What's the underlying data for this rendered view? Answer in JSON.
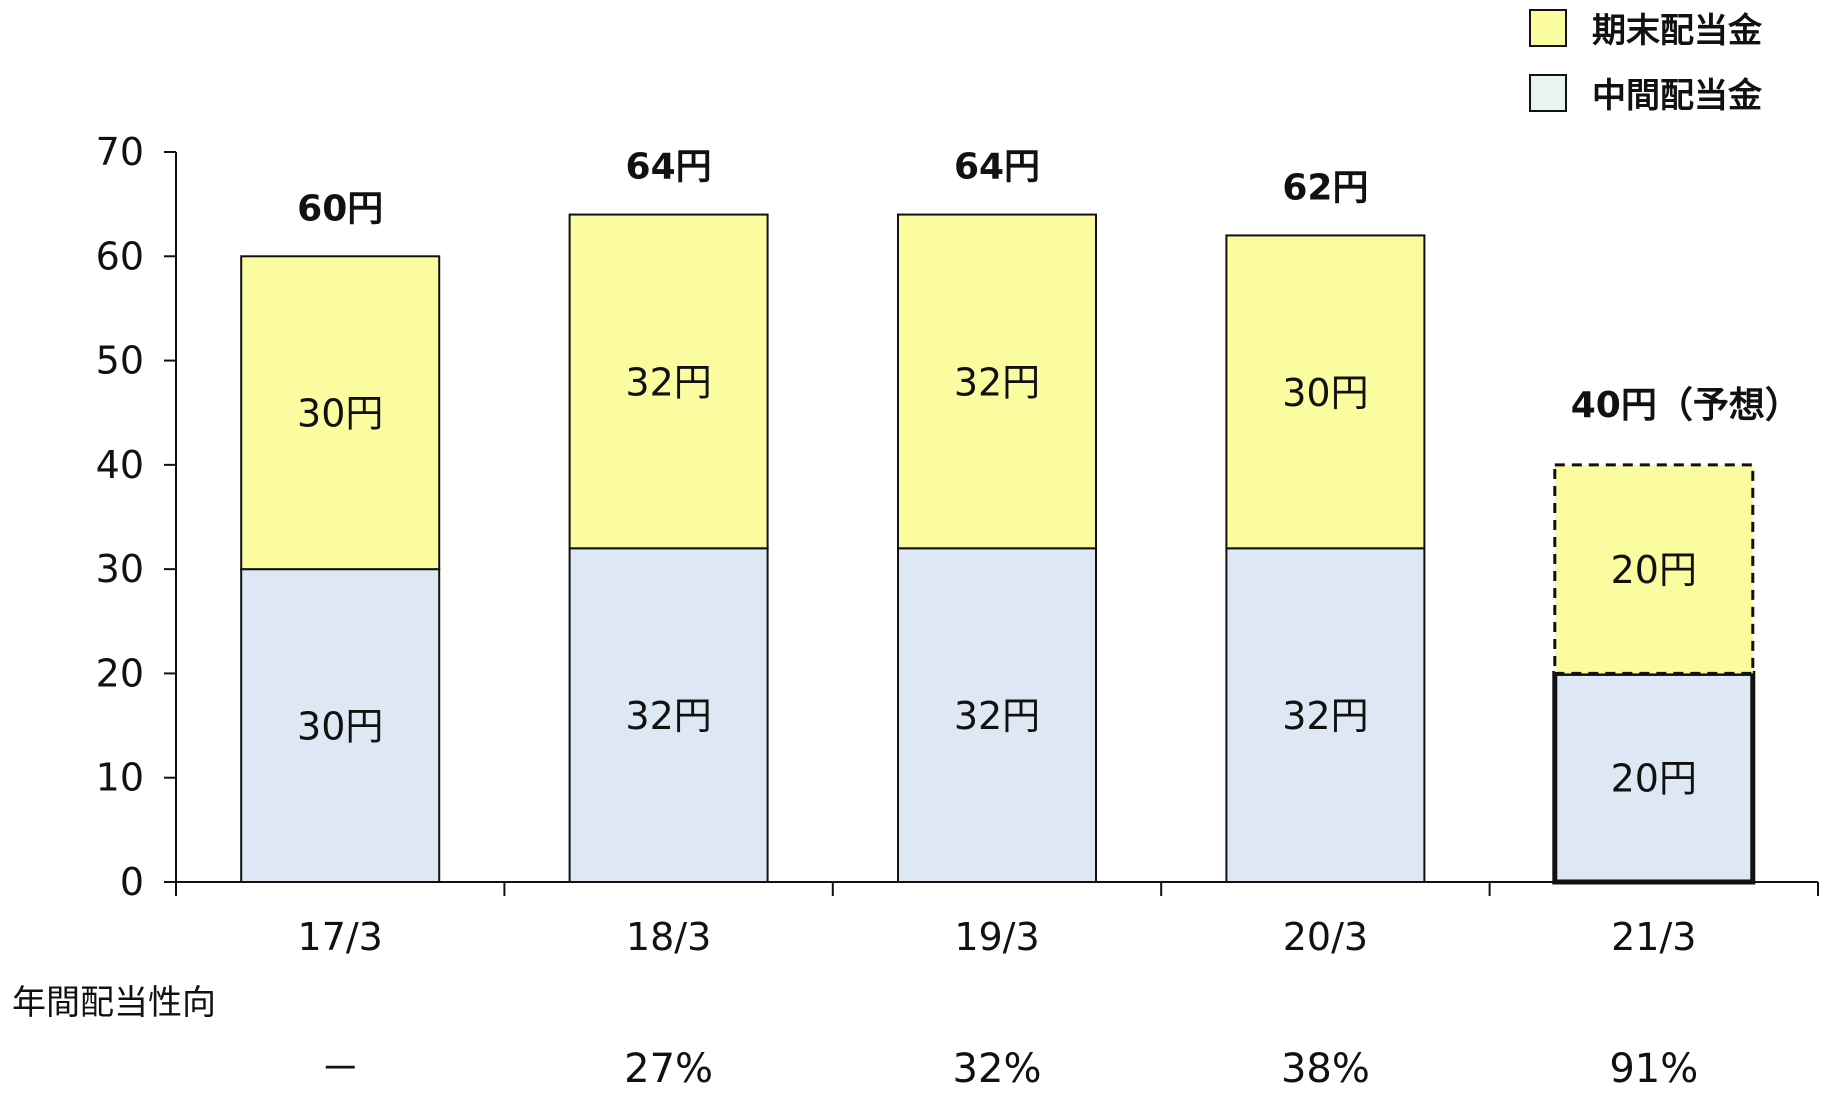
{
  "chart_data": {
    "type": "bar",
    "stacked": true,
    "categories": [
      "17/3",
      "18/3",
      "19/3",
      "20/3",
      "21/3"
    ],
    "series": [
      {
        "name": "中間配当金",
        "values": [
          30,
          32,
          32,
          32,
          20
        ],
        "labels": [
          "30円",
          "32円",
          "32円",
          "32円",
          "20円"
        ],
        "color": "#dde8f4"
      },
      {
        "name": "期末配当金",
        "values": [
          30,
          32,
          32,
          30,
          20
        ],
        "labels": [
          "30円",
          "32円",
          "32円",
          "30円",
          "20円"
        ],
        "color": "#fbfba0"
      }
    ],
    "totals": [
      60,
      64,
      64,
      62,
      40
    ],
    "total_labels": [
      "60円",
      "64円",
      "64円",
      "62円",
      "40円（予想）"
    ],
    "forecast_category": "21/3",
    "ylim": [
      0,
      70
    ],
    "yticks": [
      0,
      10,
      20,
      30,
      40,
      50,
      60,
      70
    ],
    "grid": false,
    "legend_position": "top-right",
    "legend": [
      {
        "label": "期末配当金",
        "color": "#fbfba0"
      },
      {
        "label": "中間配当金",
        "color": "#e8f4ee"
      }
    ],
    "payout_ratio": {
      "title": "年間配当性向",
      "values": [
        "－",
        "27%",
        "32%",
        "38%",
        "91%"
      ]
    }
  }
}
